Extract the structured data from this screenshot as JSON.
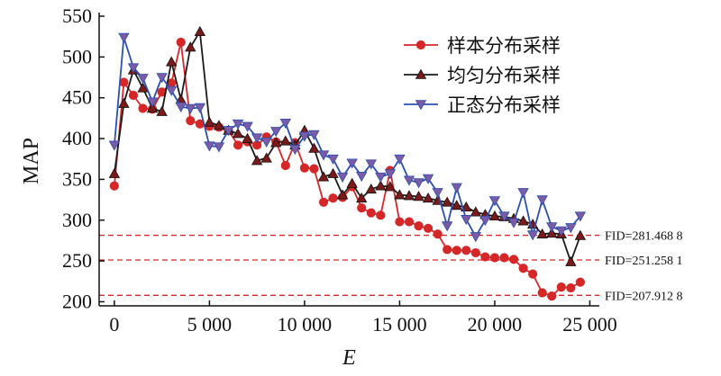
{
  "chart_data": {
    "type": "line",
    "xlabel": "E",
    "ylabel": "MAP",
    "xlim": [
      -800,
      25500
    ],
    "ylim": [
      195,
      550
    ],
    "x_ticks": [
      0,
      5000,
      10000,
      15000,
      20000,
      25000
    ],
    "x_tick_labels": [
      "0",
      "5 000",
      "10 000",
      "15 000",
      "20 000",
      "25 000"
    ],
    "y_ticks": [
      200,
      250,
      300,
      350,
      400,
      450,
      500,
      550
    ],
    "y_tick_labels": [
      "200",
      "250",
      "300",
      "350",
      "400",
      "450",
      "500",
      "550"
    ],
    "legend_position": "top-right",
    "reference_lines": [
      {
        "value": 281.4688,
        "label": "FID=281.468 8",
        "color": "#d62728"
      },
      {
        "value": 251.2581,
        "label": "FID=251.258 1",
        "color": "#d62728"
      },
      {
        "value": 207.9128,
        "label": "FID=207.912 8",
        "color": "#d62728"
      }
    ],
    "x": [
      0,
      500,
      1000,
      1500,
      2000,
      2500,
      3000,
      3500,
      4000,
      4500,
      5000,
      5500,
      6000,
      6500,
      7000,
      7500,
      8000,
      8500,
      9000,
      9500,
      10000,
      10500,
      11000,
      11500,
      12000,
      12500,
      13000,
      13500,
      14000,
      14500,
      15000,
      15500,
      16000,
      16500,
      17000,
      17500,
      18000,
      18500,
      19000,
      19500,
      20000,
      20500,
      21000,
      21500,
      22000,
      22500,
      23000,
      23500,
      24000,
      24500
    ],
    "series": [
      {
        "name": "样本分布采样",
        "color": "#d62728",
        "marker": "circle",
        "values": [
          342,
          469,
          453,
          437,
          436,
          457,
          468,
          518,
          422,
          418,
          415,
          414,
          410,
          392,
          396,
          392,
          402,
          396,
          367,
          395,
          364,
          363,
          322,
          327,
          328,
          341,
          315,
          309,
          306,
          361,
          298,
          298,
          293,
          290,
          283,
          264,
          263,
          263,
          260,
          255,
          254,
          254,
          252,
          241,
          234,
          211,
          207,
          218,
          217,
          224
        ]
      },
      {
        "name": "均匀分布采样",
        "color": "#1a1a1a",
        "marker": "triangle-up",
        "values": [
          357,
          443,
          484,
          462,
          437,
          433,
          494,
          448,
          512,
          531,
          420,
          416,
          410,
          406,
          400,
          373,
          376,
          395,
          397,
          392,
          410,
          388,
          353,
          357,
          331,
          345,
          327,
          338,
          342,
          341,
          331,
          330,
          329,
          327,
          324,
          322,
          318,
          316,
          310,
          307,
          305,
          304,
          302,
          299,
          295,
          283,
          284,
          283,
          249,
          281
        ]
      },
      {
        "name": "正态分布采样",
        "color": "#2b4fb0",
        "marker": "triangle-down",
        "values": [
          392,
          524,
          487,
          474,
          445,
          475,
          459,
          439,
          437,
          438,
          391,
          390,
          410,
          418,
          415,
          401,
          396,
          409,
          419,
          387,
          403,
          405,
          380,
          375,
          353,
          370,
          354,
          369,
          353,
          357,
          375,
          349,
          346,
          351,
          334,
          293,
          340,
          301,
          280,
          300,
          324,
          305,
          297,
          334,
          282,
          325,
          292,
          287,
          291,
          305
        ]
      }
    ]
  }
}
